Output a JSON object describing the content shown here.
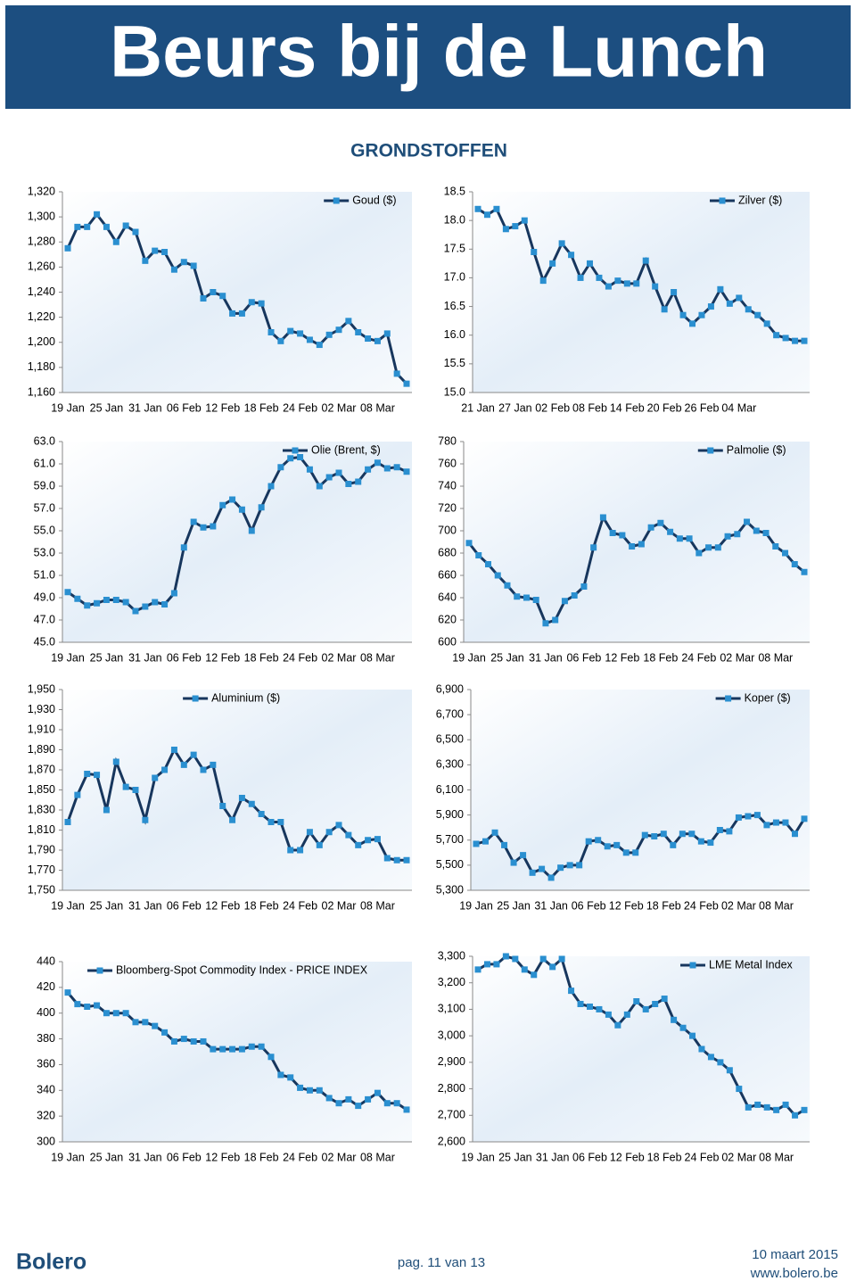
{
  "header": {
    "title": "Beurs bij de Lunch"
  },
  "section_title": "GRONDSTOFFEN",
  "footer": {
    "logo": "Bolero",
    "page": "pag. 11 van 13",
    "date": "10 maart 2015",
    "url": "www.bolero.be"
  },
  "chart_data": [
    {
      "type": "line",
      "legend": "upper right",
      "series": [
        {
          "name": "Goud ($)",
          "color": "#17365d",
          "marker_color": "#2a8fd0",
          "values": [
            1275,
            1292,
            1292,
            1302,
            1292,
            1280,
            1293,
            1288,
            1265,
            1273,
            1272,
            1258,
            1264,
            1261,
            1235,
            1240,
            1237,
            1223,
            1223,
            1232,
            1231,
            1208,
            1201,
            1209,
            1207,
            1202,
            1198,
            1206,
            1210,
            1217,
            1208,
            1203,
            1201,
            1207,
            1175,
            1167
          ]
        }
      ],
      "categories": [
        "19 Jan",
        null,
        null,
        null,
        "25 Jan",
        null,
        null,
        null,
        "31 Jan",
        null,
        null,
        null,
        "06 Feb",
        null,
        null,
        null,
        "12 Feb",
        null,
        null,
        null,
        "18 Feb",
        null,
        null,
        null,
        "24 Feb",
        null,
        null,
        null,
        "02 Mar",
        null,
        null,
        null,
        "08 Mar",
        null,
        null,
        null
      ],
      "ylim": [
        1160,
        1320
      ],
      "yticks": [
        {
          "value": 1160,
          "label": "1,160"
        },
        {
          "value": 1180,
          "label": "1,180"
        },
        {
          "value": 1200,
          "label": "1,200"
        },
        {
          "value": 1220,
          "label": "1,220"
        },
        {
          "value": 1240,
          "label": "1,240"
        },
        {
          "value": 1260,
          "label": "1,260"
        },
        {
          "value": 1280,
          "label": "1,280"
        },
        {
          "value": 1300,
          "label": "1,300"
        },
        {
          "value": 1320,
          "label": "1,320"
        }
      ]
    },
    {
      "type": "line",
      "legend": "upper right",
      "series": [
        {
          "name": "Zilver ($)",
          "color": "#17365d",
          "marker_color": "#2a8fd0",
          "values": [
            18.2,
            18.1,
            18.2,
            17.85,
            17.9,
            18.0,
            17.45,
            16.95,
            17.25,
            17.6,
            17.4,
            17.0,
            17.25,
            17.0,
            16.85,
            16.95,
            16.9,
            16.9,
            17.3,
            16.85,
            16.45,
            16.75,
            16.35,
            16.2,
            16.35,
            16.5,
            16.8,
            16.55,
            16.65,
            16.45,
            16.35,
            16.2,
            16.0,
            15.95,
            15.9,
            15.9
          ]
        }
      ],
      "categories": [
        "21 Jan",
        null,
        null,
        null,
        "27 Jan",
        null,
        null,
        null,
        "02 Feb",
        null,
        null,
        null,
        "08 Feb",
        null,
        null,
        null,
        "14 Feb",
        null,
        null,
        null,
        "20 Feb",
        null,
        null,
        null,
        "26 Feb",
        null,
        null,
        null,
        "04 Mar",
        null,
        null,
        null,
        null,
        null,
        null,
        null
      ],
      "ylim": [
        15,
        18.5
      ],
      "yticks": [
        {
          "value": 15,
          "label": "15.0"
        },
        15.5,
        {
          "value": 16,
          "label": "16.0"
        },
        16.5,
        {
          "value": 17,
          "label": "17.0"
        },
        17.5,
        {
          "value": 18,
          "label": "18.0"
        },
        18.5
      ]
    },
    {
      "type": "line",
      "legend": "upper right",
      "series": [
        {
          "name": "Olie (Brent, $)",
          "color": "#17365d",
          "marker_color": "#2a8fd0",
          "values": [
            49.5,
            48.9,
            48.3,
            48.5,
            48.8,
            48.8,
            48.6,
            47.8,
            48.2,
            48.6,
            48.4,
            49.4,
            53.5,
            55.8,
            55.3,
            55.4,
            57.3,
            57.8,
            56.9,
            55.0,
            57.1,
            59.0,
            60.7,
            61.5,
            61.6,
            60.5,
            59.0,
            59.8,
            60.2,
            59.2,
            59.4,
            60.5,
            61.1,
            60.6,
            60.7,
            60.3
          ]
        }
      ],
      "categories": [
        "19 Jan",
        null,
        null,
        null,
        "25 Jan",
        null,
        null,
        null,
        "31 Jan",
        null,
        null,
        null,
        "06 Feb",
        null,
        null,
        null,
        "12 Feb",
        null,
        null,
        null,
        "18 Feb",
        null,
        null,
        null,
        "24 Feb",
        null,
        null,
        null,
        "02 Mar",
        null,
        null,
        null,
        "08 Mar",
        null,
        null,
        null
      ],
      "ylim": [
        45,
        63
      ],
      "yticks": [
        {
          "value": 45,
          "label": "45.0"
        },
        {
          "value": 47,
          "label": "47.0"
        },
        {
          "value": 49,
          "label": "49.0"
        },
        {
          "value": 51,
          "label": "51.0"
        },
        {
          "value": 53,
          "label": "53.0"
        },
        {
          "value": 55,
          "label": "55.0"
        },
        {
          "value": 57,
          "label": "57.0"
        },
        {
          "value": 59,
          "label": "59.0"
        },
        {
          "value": 61,
          "label": "61.0"
        },
        {
          "value": 63,
          "label": "63.0"
        }
      ]
    },
    {
      "type": "line",
      "legend": "upper right",
      "series": [
        {
          "name": "Palmolie ($)",
          "color": "#17365d",
          "marker_color": "#2a8fd0",
          "values": [
            689,
            678,
            670,
            660,
            651,
            641,
            640,
            638,
            617,
            620,
            637,
            642,
            650,
            685,
            712,
            698,
            696,
            686,
            688,
            703,
            707,
            699,
            693,
            693,
            680,
            685,
            685,
            695,
            697,
            708,
            700,
            698,
            686,
            680,
            670,
            663
          ]
        }
      ],
      "categories": [
        "19 Jan",
        null,
        null,
        null,
        "25 Jan",
        null,
        null,
        null,
        "31 Jan",
        null,
        null,
        null,
        "06 Feb",
        null,
        null,
        null,
        "12 Feb",
        null,
        null,
        null,
        "18 Feb",
        null,
        null,
        null,
        "24 Feb",
        null,
        null,
        null,
        "02 Mar",
        null,
        null,
        null,
        "08 Mar",
        null,
        null,
        null
      ],
      "ylim": [
        600,
        780
      ],
      "yticks": [
        600,
        620,
        640,
        660,
        680,
        700,
        720,
        740,
        760,
        780
      ]
    },
    {
      "type": "line",
      "legend": "upper center",
      "series": [
        {
          "name": "Aluminium ($)",
          "color": "#17365d",
          "marker_color": "#2a8fd0",
          "values": [
            1818,
            1845,
            1866,
            1865,
            1830,
            1878,
            1853,
            1850,
            1820,
            1862,
            1870,
            1890,
            1875,
            1885,
            1870,
            1875,
            1834,
            1820,
            1842,
            1836,
            1826,
            1818,
            1818,
            1790,
            1790,
            1808,
            1795,
            1808,
            1815,
            1805,
            1795,
            1800,
            1801,
            1782,
            1780,
            1780
          ]
        }
      ],
      "categories": [
        "19 Jan",
        null,
        null,
        null,
        "25 Jan",
        null,
        null,
        null,
        "31 Jan",
        null,
        null,
        null,
        "06 Feb",
        null,
        null,
        null,
        "12 Feb",
        null,
        null,
        null,
        "18 Feb",
        null,
        null,
        null,
        "24 Feb",
        null,
        null,
        null,
        "02 Mar",
        null,
        null,
        null,
        "08 Mar",
        null,
        null,
        null
      ],
      "ylim": [
        1750,
        1950
      ],
      "yticks": [
        {
          "value": 1750,
          "label": "1,750"
        },
        {
          "value": 1770,
          "label": "1,770"
        },
        {
          "value": 1790,
          "label": "1,790"
        },
        {
          "value": 1810,
          "label": "1,810"
        },
        {
          "value": 1830,
          "label": "1,830"
        },
        {
          "value": 1850,
          "label": "1,850"
        },
        {
          "value": 1870,
          "label": "1,870"
        },
        {
          "value": 1890,
          "label": "1,890"
        },
        {
          "value": 1910,
          "label": "1,910"
        },
        {
          "value": 1930,
          "label": "1,930"
        },
        {
          "value": 1950,
          "label": "1,950"
        }
      ]
    },
    {
      "type": "line",
      "legend": "upper right",
      "series": [
        {
          "name": "Koper ($)",
          "color": "#17365d",
          "marker_color": "#2a8fd0",
          "values": [
            5670,
            5690,
            5760,
            5660,
            5520,
            5580,
            5440,
            5470,
            5400,
            5480,
            5500,
            5500,
            5690,
            5700,
            5650,
            5660,
            5600,
            5600,
            5740,
            5730,
            5750,
            5660,
            5750,
            5750,
            5690,
            5680,
            5780,
            5770,
            5880,
            5890,
            5900,
            5820,
            5840,
            5840,
            5750,
            5870
          ]
        }
      ],
      "categories": [
        "19 Jan",
        null,
        null,
        null,
        "25 Jan",
        null,
        null,
        null,
        "31 Jan",
        null,
        null,
        null,
        "06 Feb",
        null,
        null,
        null,
        "12 Feb",
        null,
        null,
        null,
        "18 Feb",
        null,
        null,
        null,
        "24 Feb",
        null,
        null,
        null,
        "02 Mar",
        null,
        null,
        null,
        "08 Mar",
        null,
        null,
        null
      ],
      "ylim": [
        5300,
        6900
      ],
      "yticks": [
        {
          "value": 5300,
          "label": "5,300"
        },
        {
          "value": 5500,
          "label": "5,500"
        },
        {
          "value": 5700,
          "label": "5,700"
        },
        {
          "value": 5900,
          "label": "5,900"
        },
        {
          "value": 6100,
          "label": "6,100"
        },
        {
          "value": 6300,
          "label": "6,300"
        },
        {
          "value": 6500,
          "label": "6,500"
        },
        {
          "value": 6700,
          "label": "6,700"
        },
        {
          "value": 6900,
          "label": "6,900"
        }
      ]
    },
    {
      "type": "line",
      "legend": "upper left",
      "series": [
        {
          "name": "Bloomberg-Spot Commodity Index - PRICE INDEX",
          "color": "#17365d",
          "marker_color": "#2a8fd0",
          "values": [
            416,
            407,
            405,
            406,
            400,
            400,
            400,
            393,
            393,
            390,
            385,
            378,
            380,
            378,
            378,
            372,
            372,
            372,
            372,
            374,
            374,
            366,
            352,
            350,
            342,
            340,
            340,
            334,
            330,
            333,
            328,
            333,
            338,
            330,
            330,
            325
          ]
        }
      ],
      "categories": [
        "19 Jan",
        null,
        null,
        null,
        "25 Jan",
        null,
        null,
        null,
        "31 Jan",
        null,
        null,
        null,
        "06 Feb",
        null,
        null,
        null,
        "12 Feb",
        null,
        null,
        null,
        "18 Feb",
        null,
        null,
        null,
        "24 Feb",
        null,
        null,
        null,
        "02 Mar",
        null,
        null,
        null,
        "08 Mar",
        null,
        null,
        null
      ],
      "ylim": [
        300,
        440
      ],
      "yticks": [
        300,
        320,
        340,
        360,
        380,
        400,
        420,
        440
      ]
    },
    {
      "type": "line",
      "legend": "upper right",
      "series": [
        {
          "name": "LME Metal Index",
          "color": "#17365d",
          "marker_color": "#2a8fd0",
          "values": [
            3250,
            3270,
            3270,
            3300,
            3290,
            3250,
            3230,
            3290,
            3260,
            3290,
            3170,
            3120,
            3110,
            3100,
            3080,
            3040,
            3080,
            3130,
            3100,
            3120,
            3140,
            3060,
            3030,
            3000,
            2950,
            2920,
            2900,
            2870,
            2800,
            2730,
            2740,
            2730,
            2720,
            2740,
            2700,
            2720
          ]
        }
      ],
      "categories": [
        "19 Jan",
        null,
        null,
        null,
        "25 Jan",
        null,
        null,
        null,
        "31 Jan",
        null,
        null,
        null,
        "06 Feb",
        null,
        null,
        null,
        "12 Feb",
        null,
        null,
        null,
        "18 Feb",
        null,
        null,
        null,
        "24 Feb",
        null,
        null,
        null,
        "02 Mar",
        null,
        null,
        null,
        "08 Mar",
        null,
        null,
        null
      ],
      "ylim": [
        2600,
        3300
      ],
      "yticks": [
        {
          "value": 2600,
          "label": "2,600"
        },
        {
          "value": 2700,
          "label": "2,700"
        },
        {
          "value": 2800,
          "label": "2,800"
        },
        {
          "value": 2900,
          "label": "2,900"
        },
        {
          "value": 3000,
          "label": "3,000"
        },
        {
          "value": 3100,
          "label": "3,100"
        },
        {
          "value": 3200,
          "label": "3,200"
        },
        {
          "value": 3300,
          "label": "3,300"
        }
      ]
    }
  ]
}
